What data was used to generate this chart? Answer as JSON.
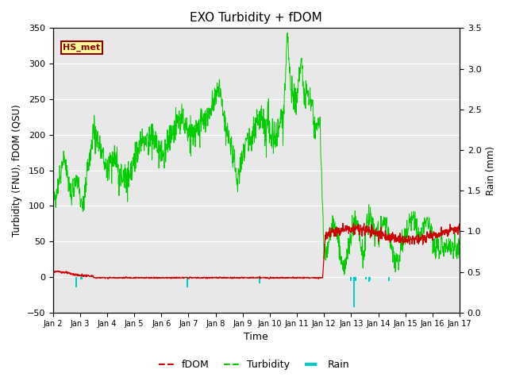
{
  "title": "EXO Turbidity + fDOM",
  "xlabel": "Time",
  "ylabel_left": "Turbidity (FNU), fDOM (QSU)",
  "ylabel_right": "Rain (mm)",
  "ylim_left": [
    -50,
    350
  ],
  "ylim_right": [
    0.0,
    3.5
  ],
  "xlim_days": [
    2,
    17
  ],
  "xtick_positions": [
    2,
    3,
    4,
    5,
    6,
    7,
    8,
    9,
    10,
    11,
    12,
    13,
    14,
    15,
    16,
    17
  ],
  "xtick_labels": [
    "Jan 2",
    "Jan 3",
    "Jan 4",
    "Jan 5",
    "Jan 6",
    "Jan 7",
    "Jan 8",
    "Jan 9",
    "Jan 10",
    "Jan 11",
    "Jan 12",
    "Jan 13",
    "Jan 14",
    "Jan 15",
    "Jan 16",
    "Jan 17"
  ],
  "ytick_left": [
    -50,
    0,
    50,
    100,
    150,
    200,
    250,
    300,
    350
  ],
  "ytick_right": [
    0.0,
    0.5,
    1.0,
    1.5,
    2.0,
    2.5,
    3.0,
    3.5
  ],
  "bg_color": "#e8e8e8",
  "station_label": "HS_met",
  "station_box_facecolor": "#ffff99",
  "station_box_edgecolor": "#8b0000",
  "fdom_color": "#cc0000",
  "turbidity_color": "#00cc00",
  "rain_color": "#00cccc",
  "legend_fdom": "fDOM",
  "legend_turbidity": "Turbidity",
  "legend_rain": "Rain",
  "rain_events_day": [
    2.85,
    3.05,
    6.95,
    9.62,
    13.0,
    13.1,
    13.15,
    13.55,
    13.65,
    13.7,
    14.4
  ],
  "rain_events_mm": [
    1.0,
    0.25,
    1.0,
    0.65,
    0.4,
    3.0,
    0.4,
    0.2,
    0.5,
    0.3,
    0.4
  ],
  "rain_bar_width": 0.06
}
